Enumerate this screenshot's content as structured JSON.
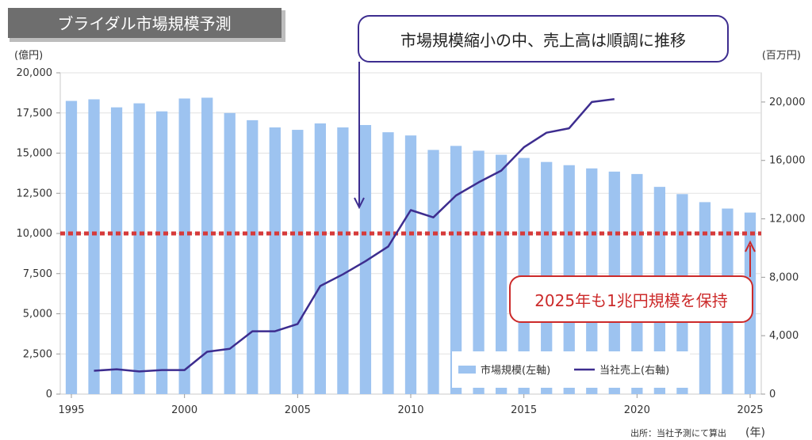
{
  "chart_data": {
    "type": "bar",
    "title": "ブライダル市場規模予測",
    "left_axis_unit": "(億円)",
    "right_axis_unit": "(百万円)",
    "x_axis_unit": "(年)",
    "source": "出所：当社予測にて算出",
    "x_range": [
      1995,
      2025
    ],
    "x_ticks": [
      "1995",
      "2000",
      "2005",
      "2010",
      "2015",
      "2020",
      "2025"
    ],
    "y_left": {
      "min": 0,
      "max": 20000,
      "ticks": [
        "0",
        "2,500",
        "5,000",
        "7,500",
        "10,000",
        "12,500",
        "15,000",
        "17,500",
        "20,000"
      ]
    },
    "y_right": {
      "min": 0,
      "max": 22000,
      "ticks": [
        "0",
        "4,000",
        "8,000",
        "12,000",
        "16,000",
        "20,000"
      ]
    },
    "reference_line": {
      "value": 10000,
      "axis": "left",
      "color": "#d63a3a"
    },
    "series": [
      {
        "name": "市場規模(左軸)",
        "type": "bar",
        "axis": "left",
        "color": "#9dc3f0",
        "x": [
          1995,
          1996,
          1997,
          1998,
          1999,
          2000,
          2001,
          2002,
          2003,
          2004,
          2005,
          2006,
          2007,
          2008,
          2009,
          2010,
          2011,
          2012,
          2013,
          2014,
          2015,
          2016,
          2017,
          2018,
          2019,
          2020,
          2021,
          2022,
          2023,
          2024,
          2025
        ],
        "values": [
          18250,
          18350,
          17850,
          18100,
          17600,
          18400,
          18450,
          17500,
          17050,
          16600,
          16450,
          16850,
          16600,
          16750,
          16300,
          16100,
          15200,
          15450,
          15150,
          14900,
          14700,
          14450,
          14250,
          14050,
          13850,
          13700,
          12900,
          12450,
          11950,
          11550,
          11300
        ]
      },
      {
        "name": "当社売上(右軸)",
        "type": "line",
        "axis": "right",
        "color": "#3d2d8f",
        "x": [
          1996,
          1997,
          1998,
          1999,
          2000,
          2001,
          2002,
          2003,
          2004,
          2005,
          2006,
          2007,
          2008,
          2009,
          2010,
          2011,
          2012,
          2013,
          2014,
          2015,
          2016,
          2017,
          2018,
          2019
        ],
        "values": [
          1600,
          1700,
          1550,
          1650,
          1650,
          2900,
          3100,
          4300,
          4300,
          4800,
          7400,
          8200,
          9100,
          10100,
          12600,
          12100,
          13600,
          14500,
          15300,
          16900,
          17900,
          18200,
          20000,
          20200
        ]
      }
    ],
    "legend": {
      "position": "bottom-right"
    },
    "annotations": [
      {
        "text": "市場規模縮小の中、売上高は順調に推移",
        "color": "#3d2d8f"
      },
      {
        "text": "2025年も1兆円規模を保持",
        "color": "#cc2a2a"
      }
    ]
  }
}
